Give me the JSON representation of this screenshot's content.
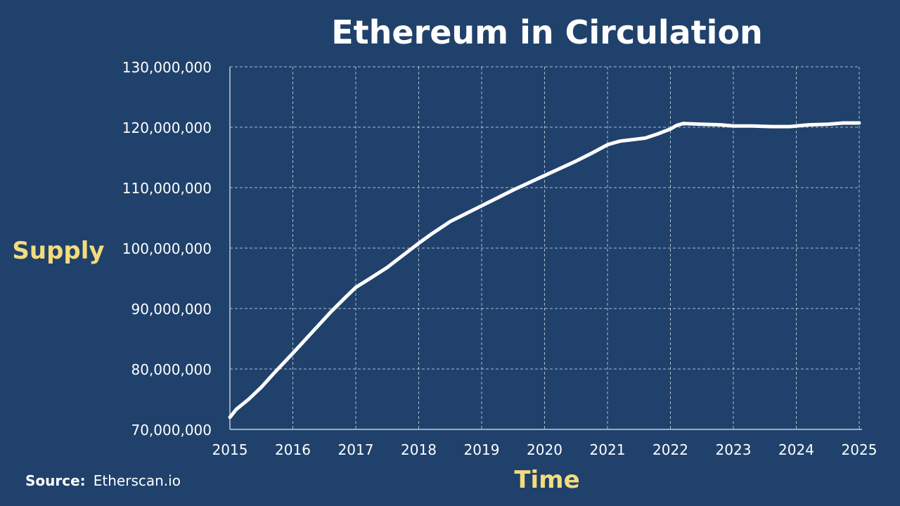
{
  "chart_data": {
    "type": "line",
    "title": "Ethereum in Circulation",
    "xlabel": "Time",
    "ylabel": "Supply",
    "source_prefix": "Source:",
    "source_text": "Etherscan.io",
    "xlim": [
      2015,
      2025
    ],
    "ylim": [
      70000000,
      130000000
    ],
    "x_ticks": [
      2015,
      2016,
      2017,
      2018,
      2019,
      2020,
      2021,
      2022,
      2023,
      2024,
      2025
    ],
    "x_tick_labels": [
      "2015",
      "2016",
      "2017",
      "2018",
      "2019",
      "2020",
      "2021",
      "2022",
      "2023",
      "2024",
      "2025"
    ],
    "y_ticks": [
      70000000,
      80000000,
      90000000,
      100000000,
      110000000,
      120000000,
      130000000
    ],
    "y_tick_labels": [
      "70,000,000",
      "80,000,000",
      "90,000,000",
      "100,000,000",
      "110,000,000",
      "120,000,000",
      "130,000,000"
    ],
    "grid": true,
    "series": [
      {
        "color": "#ffffff",
        "x": [
          2015.0,
          2015.1,
          2015.3,
          2015.5,
          2015.7,
          2016.0,
          2016.3,
          2016.6,
          2016.85,
          2017.0,
          2017.2,
          2017.5,
          2017.75,
          2018.0,
          2018.2,
          2018.5,
          2018.75,
          2019.0,
          2019.25,
          2019.5,
          2019.75,
          2020.0,
          2020.25,
          2020.5,
          2020.75,
          2021.0,
          2021.2,
          2021.6,
          2021.8,
          2022.0,
          2022.1,
          2022.2,
          2022.5,
          2022.8,
          2023.0,
          2023.3,
          2023.6,
          2023.9,
          2024.2,
          2024.5,
          2024.75,
          2025.0
        ],
        "values": [
          72000000,
          73300000,
          75000000,
          77000000,
          79300000,
          82600000,
          86000000,
          89400000,
          92000000,
          93500000,
          94800000,
          96800000,
          98800000,
          100800000,
          102300000,
          104400000,
          105700000,
          107000000,
          108300000,
          109600000,
          110800000,
          112000000,
          113200000,
          114400000,
          115700000,
          117100000,
          117700000,
          118200000,
          118900000,
          119700000,
          120300000,
          120600000,
          120500000,
          120400000,
          120200000,
          120200000,
          120100000,
          120100000,
          120400000,
          120500000,
          120700000,
          120700000
        ]
      }
    ]
  }
}
